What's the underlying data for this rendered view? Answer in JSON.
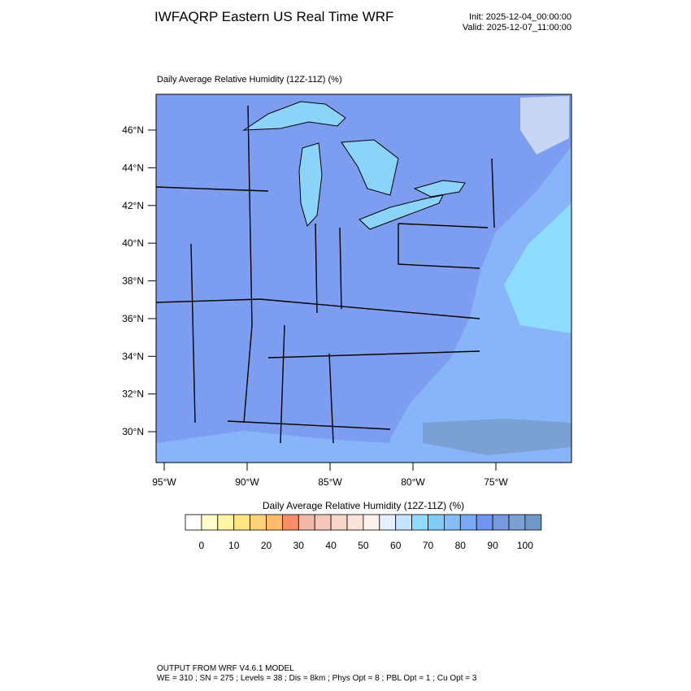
{
  "header": {
    "title": "IWFAQRP Eastern US Real Time WRF",
    "init": "Init: 2025-12-04_00:00:00",
    "valid": "Valid: 2025-12-07_11:00:00"
  },
  "map": {
    "subtitle": "Daily Average Relative Humidity (12Z-11Z)   (%)",
    "lat_ticks": [
      {
        "value": 46,
        "label": "46°N"
      },
      {
        "value": 44,
        "label": "44°N"
      },
      {
        "value": 42,
        "label": "42°N"
      },
      {
        "value": 40,
        "label": "40°N"
      },
      {
        "value": 38,
        "label": "38°N"
      },
      {
        "value": 36,
        "label": "36°N"
      },
      {
        "value": 34,
        "label": "34°N"
      },
      {
        "value": 32,
        "label": "32°N"
      },
      {
        "value": 30,
        "label": "30°N"
      }
    ],
    "lon_ticks": [
      {
        "value": -95,
        "label": "95°W"
      },
      {
        "value": -90,
        "label": "90°W"
      },
      {
        "value": -85,
        "label": "85°W"
      },
      {
        "value": -80,
        "label": "80°W"
      },
      {
        "value": -75,
        "label": "75°W"
      }
    ]
  },
  "colorbar": {
    "title": "Daily Average Relative Humidity (12Z-11Z)  (%)",
    "ticks": [
      0,
      10,
      20,
      30,
      40,
      50,
      60,
      70,
      80,
      90,
      100
    ],
    "colors": [
      "#ffffff",
      "#ffffcc",
      "#fff5a6",
      "#ffe680",
      "#ffd27a",
      "#ffbd6b",
      "#f88d6a",
      "#f4b8a8",
      "#f5c6bb",
      "#f8d5ca",
      "#fae3da",
      "#fcf1ec",
      "#e6efff",
      "#c4e3ff",
      "#8fdcff",
      "#80ccf7",
      "#87bdf7",
      "#7aa9f5",
      "#7095ef",
      "#7a98de",
      "#7aa0d4",
      "#6f97c9"
    ]
  },
  "footer": {
    "line1": "OUTPUT FROM WRF V4.6.1 MODEL",
    "line2": "WE = 310 ; SN = 275 ; Levels = 38 ; Dis = 8km ; Phys Opt = 8 ; PBL Opt = 1 ; Cu Opt = 3"
  }
}
